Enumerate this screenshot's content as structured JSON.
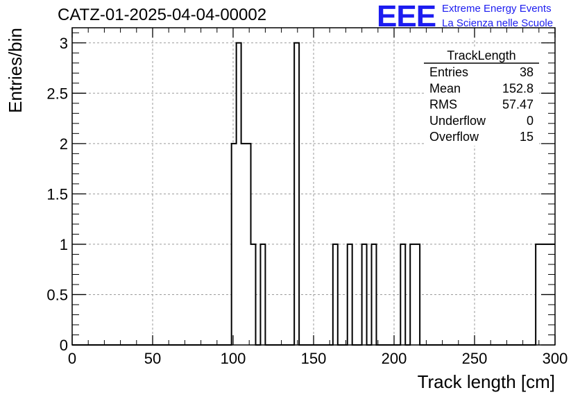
{
  "header": {
    "run_title": "CATZ-01-2025-04-04-00002",
    "logo_text": "EEE",
    "logo_line1": "Extreme Energy Events",
    "logo_line2": "La Scienza nelle Scuole",
    "logo_color": "#1c1cf0"
  },
  "stats_box": {
    "title": "TrackLength",
    "rows": [
      {
        "label": "Entries",
        "value": "38"
      },
      {
        "label": "Mean",
        "value": "152.8"
      },
      {
        "label": "RMS",
        "value": "57.47"
      },
      {
        "label": "Underflow",
        "value": "0"
      },
      {
        "label": "Overflow",
        "value": "15"
      }
    ]
  },
  "chart_data": {
    "type": "bar",
    "title": "",
    "xlabel": "Track length [cm]",
    "ylabel": "Entries/bin",
    "xlim": [
      0,
      300
    ],
    "ylim": [
      0,
      3.15
    ],
    "bin_width": 3,
    "x_ticks": [
      0,
      50,
      100,
      150,
      200,
      250,
      300
    ],
    "x_tick_labels": [
      "0",
      "50",
      "100",
      "150",
      "200",
      "250",
      "300"
    ],
    "y_ticks": [
      0,
      0.5,
      1,
      1.5,
      2,
      2.5,
      3
    ],
    "y_tick_labels": [
      "0",
      "0.5",
      "1",
      "1.5",
      "2",
      "2.5",
      "3"
    ],
    "grid": true,
    "series": [
      {
        "bins": [
          {
            "x": 99,
            "value": 2
          },
          {
            "x": 102,
            "value": 3
          },
          {
            "x": 105,
            "value": 2
          },
          {
            "x": 108,
            "value": 2
          },
          {
            "x": 111,
            "value": 1
          },
          {
            "x": 117,
            "value": 1
          },
          {
            "x": 138,
            "value": 3
          },
          {
            "x": 162,
            "value": 1
          },
          {
            "x": 171,
            "value": 1
          },
          {
            "x": 180,
            "value": 1
          },
          {
            "x": 186,
            "value": 1
          },
          {
            "x": 204,
            "value": 1
          },
          {
            "x": 210,
            "value": 1
          },
          {
            "x": 213,
            "value": 1
          },
          {
            "x": 288,
            "value": 1
          },
          {
            "x": 291,
            "value": 1
          },
          {
            "x": 294,
            "value": 1
          },
          {
            "x": 297,
            "value": 1
          }
        ]
      }
    ]
  }
}
